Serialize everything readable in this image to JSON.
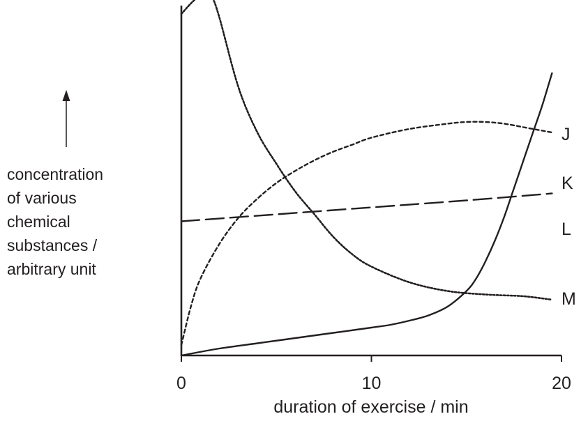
{
  "chart_data": {
    "type": "line",
    "xlabel": "duration of exercise / min",
    "ylabel_lines": [
      "concentration",
      "of various",
      "chemical",
      "substances /",
      "arbitrary unit"
    ],
    "xlim": [
      0,
      20
    ],
    "ylim": [
      0,
      100
    ],
    "x_ticks": [
      0,
      10,
      20
    ],
    "grid": false,
    "y_axis_arrow": true,
    "series": [
      {
        "name": "J",
        "line_style": "solid",
        "x": [
          0,
          2,
          4,
          6,
          8,
          10,
          11,
          12,
          13,
          14,
          15,
          15.5,
          16,
          16.5,
          17,
          17.5,
          18,
          18.5,
          19,
          19.5
        ],
        "y": [
          0,
          2,
          3.5,
          5,
          6.5,
          8,
          8.8,
          10,
          11.5,
          14,
          18.5,
          22,
          27,
          33,
          40,
          48,
          56,
          64,
          72,
          81
        ]
      },
      {
        "name": "K",
        "line_style": "short-dash",
        "x": [
          0,
          0.5,
          1,
          2,
          3,
          4,
          5,
          6,
          7,
          8,
          9,
          10,
          12,
          14,
          15,
          16,
          17,
          18,
          19,
          19.5
        ],
        "y": [
          3,
          14,
          22,
          32,
          39.5,
          45,
          49.5,
          53,
          56,
          58.5,
          60.5,
          62.5,
          65,
          66.5,
          67,
          67,
          66.5,
          65.5,
          64.5,
          64
        ]
      },
      {
        "name": "L",
        "line_style": "long-dash",
        "x": [
          0,
          5,
          10,
          15,
          19.5
        ],
        "y": [
          38.5,
          40.5,
          42.5,
          44.5,
          46.5
        ]
      },
      {
        "name": "M",
        "line_style": "dotted",
        "x": [
          0,
          0.5,
          1,
          1.3,
          1.6,
          2,
          3,
          4,
          5,
          6,
          7,
          8,
          9,
          10,
          12,
          14,
          16,
          18,
          19.5
        ],
        "y": [
          98,
          101,
          103.5,
          104,
          103,
          97,
          77,
          64,
          55,
          47,
          40.5,
          34,
          29,
          25.5,
          21,
          18.5,
          17.5,
          17,
          16
        ]
      }
    ]
  }
}
